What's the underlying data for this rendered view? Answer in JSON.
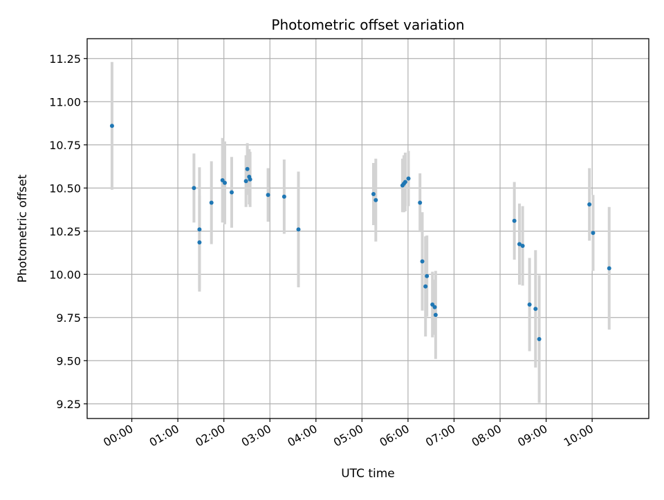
{
  "chart_data": {
    "type": "scatter",
    "title": "Photometric offset variation",
    "xlabel": "UTC time",
    "ylabel": "Photometric offset",
    "x_unit": "hours UTC",
    "xlim": [
      -0.97,
      11.23
    ],
    "ylim": [
      9.165,
      11.365
    ],
    "x_ticks": [
      0,
      1,
      2,
      3,
      4,
      5,
      6,
      7,
      8,
      9,
      10
    ],
    "x_tick_labels": [
      "00:00",
      "01:00",
      "02:00",
      "03:00",
      "04:00",
      "05:00",
      "06:00",
      "07:00",
      "08:00",
      "09:00",
      "10:00"
    ],
    "y_ticks": [
      9.25,
      9.5,
      9.75,
      10.0,
      10.25,
      10.5,
      10.75,
      11.0,
      11.25
    ],
    "y_tick_labels": [
      "9.25",
      "9.50",
      "9.75",
      "10.00",
      "10.25",
      "10.50",
      "10.75",
      "11.00",
      "11.25"
    ],
    "grid": true,
    "marker_color": "#1f77b4",
    "errorbar_color": "#d3d3d3",
    "points": [
      {
        "x": -0.43,
        "y": 10.86,
        "err": 0.37
      },
      {
        "x": 1.35,
        "y": 10.5,
        "err": 0.2
      },
      {
        "x": 1.47,
        "y": 10.26,
        "err": 0.36
      },
      {
        "x": 1.47,
        "y": 10.185,
        "err": 0.27
      },
      {
        "x": 1.73,
        "y": 10.415,
        "err": 0.24
      },
      {
        "x": 1.97,
        "y": 10.545,
        "err": 0.245
      },
      {
        "x": 2.02,
        "y": 10.53,
        "err": 0.24
      },
      {
        "x": 2.17,
        "y": 10.475,
        "err": 0.205
      },
      {
        "x": 2.48,
        "y": 10.54,
        "err": 0.15
      },
      {
        "x": 2.51,
        "y": 10.61,
        "err": 0.15
      },
      {
        "x": 2.55,
        "y": 10.565,
        "err": 0.16
      },
      {
        "x": 2.57,
        "y": 10.55,
        "err": 0.16
      },
      {
        "x": 2.96,
        "y": 10.46,
        "err": 0.155
      },
      {
        "x": 3.31,
        "y": 10.45,
        "err": 0.215
      },
      {
        "x": 3.62,
        "y": 10.26,
        "err": 0.335
      },
      {
        "x": 5.25,
        "y": 10.465,
        "err": 0.18
      },
      {
        "x": 5.3,
        "y": 10.43,
        "err": 0.24
      },
      {
        "x": 5.88,
        "y": 10.515,
        "err": 0.155
      },
      {
        "x": 5.91,
        "y": 10.525,
        "err": 0.165
      },
      {
        "x": 5.94,
        "y": 10.535,
        "err": 0.17
      },
      {
        "x": 6.01,
        "y": 10.555,
        "err": 0.16
      },
      {
        "x": 6.26,
        "y": 10.415,
        "err": 0.17
      },
      {
        "x": 6.31,
        "y": 10.075,
        "err": 0.285
      },
      {
        "x": 6.38,
        "y": 9.93,
        "err": 0.29
      },
      {
        "x": 6.41,
        "y": 9.99,
        "err": 0.235
      },
      {
        "x": 6.53,
        "y": 9.825,
        "err": 0.19
      },
      {
        "x": 6.58,
        "y": 9.81,
        "err": 0.16
      },
      {
        "x": 6.6,
        "y": 9.765,
        "err": 0.255
      },
      {
        "x": 8.31,
        "y": 10.31,
        "err": 0.225
      },
      {
        "x": 8.42,
        "y": 10.175,
        "err": 0.235
      },
      {
        "x": 8.49,
        "y": 10.165,
        "err": 0.23
      },
      {
        "x": 8.64,
        "y": 9.825,
        "err": 0.27
      },
      {
        "x": 8.77,
        "y": 9.8,
        "err": 0.34
      },
      {
        "x": 8.85,
        "y": 9.625,
        "err": 0.37
      },
      {
        "x": 9.94,
        "y": 10.405,
        "err": 0.21
      },
      {
        "x": 10.02,
        "y": 10.24,
        "err": 0.22
      },
      {
        "x": 10.37,
        "y": 10.035,
        "err": 0.355
      }
    ]
  }
}
